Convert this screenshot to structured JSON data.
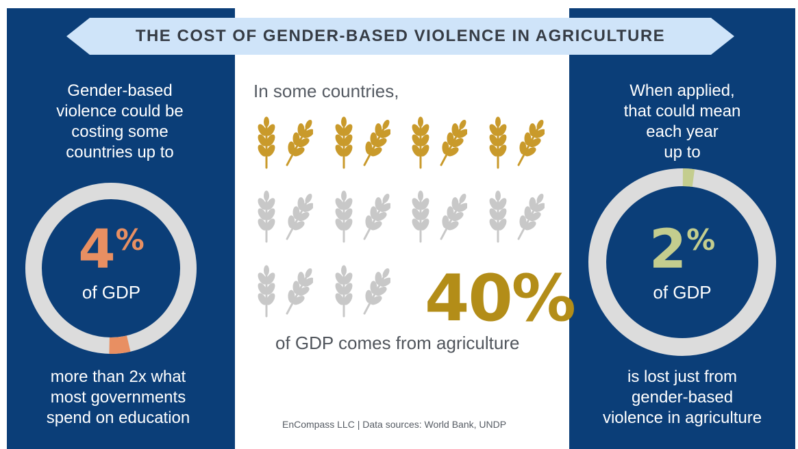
{
  "title": "THE COST OF GENDER-BASED VIOLENCE IN AGRICULTURE",
  "colors": {
    "panel_blue": "#0b3e78",
    "banner_fill": "#cfe4f9",
    "ring_gray": "#dcdcdc",
    "orange_accent": "#e88f62",
    "green_accent": "#c4cd8e",
    "wheat_gold": "#c99a2b",
    "wheat_gray": "#c8c8c8",
    "stat_gold": "#b38d18"
  },
  "left": {
    "intro_lines": [
      "Gender-based",
      "violence could be",
      "costing some",
      "countries up to"
    ],
    "stat_number": "4",
    "stat_sign": "%",
    "stat_unit": "of GDP",
    "ring_fraction": 0.04,
    "bottom_lines": [
      "more than 2x what",
      "most governments",
      "spend on education"
    ]
  },
  "center": {
    "intro": "In some countries,",
    "stat": "40%",
    "stat_fraction": 0.4,
    "caption": "of GDP comes from agriculture",
    "wheat_icons_total": 20,
    "wheat_icons_gold": 8,
    "source": "EnCompass LLC | Data sources: World Bank, UNDP"
  },
  "right": {
    "intro_lines": [
      "When applied,",
      "that could mean",
      "each year",
      "up to"
    ],
    "stat_number": "2",
    "stat_sign": "%",
    "stat_unit": "of GDP",
    "ring_fraction": 0.02,
    "bottom_lines": [
      "is lost just from",
      "gender-based",
      "violence in agriculture"
    ]
  }
}
